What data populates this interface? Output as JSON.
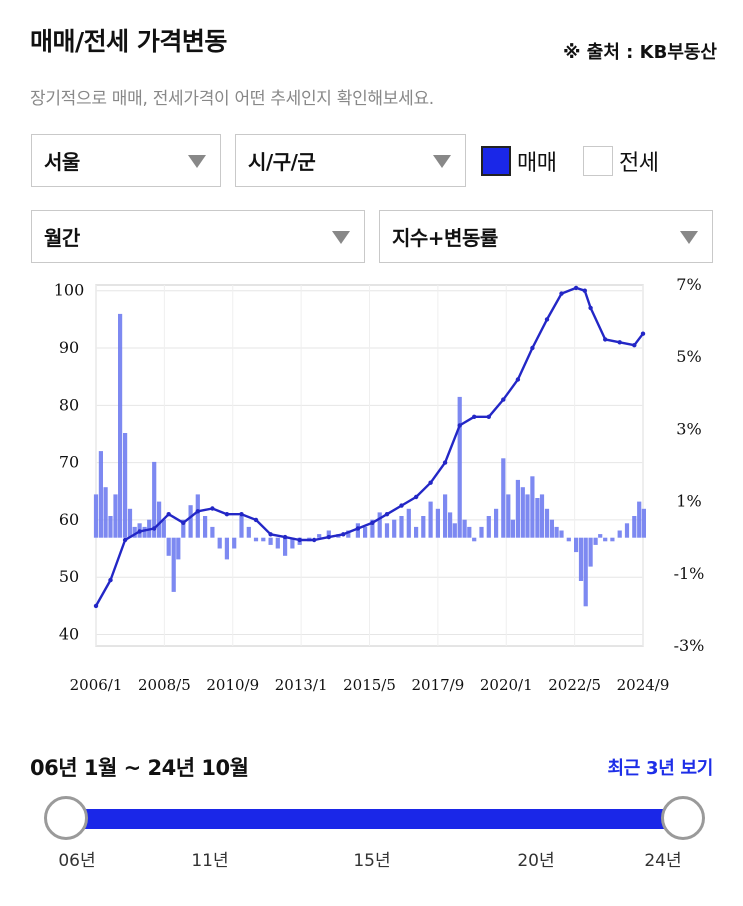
{
  "header": {
    "title": "매매/전세 가격변동",
    "source": "※ 출처 : KB부동산",
    "subtitle": "장기적으로 매매, 전세가격이 어떤 추세인지 확인해보세요."
  },
  "filters": {
    "region": "서울",
    "district": "시/구/군",
    "period": "월간",
    "mode": "지수+변동률",
    "sale_label": "매매",
    "sale_checked": true,
    "lease_label": "전세",
    "lease_checked": false
  },
  "colors": {
    "line": "#2327c6",
    "bar": "#6f7cf0",
    "accent": "#1a27e8",
    "grid": "#e6e6e6"
  },
  "chart_data": {
    "type": "line+bar",
    "x_tick_labels": [
      "2006/1",
      "2008/5",
      "2010/9",
      "2013/1",
      "2015/5",
      "2017/9",
      "2020/1",
      "2022/5",
      "2024/9"
    ],
    "left_axis": {
      "ticks": [
        "100",
        "90",
        "80",
        "70",
        "60",
        "50",
        "40"
      ],
      "ylim": [
        38,
        101
      ]
    },
    "right_axis": {
      "ticks": [
        "7%",
        "5%",
        "3%",
        "1%",
        "-1%",
        "-3%"
      ],
      "ylim": [
        -3,
        7
      ]
    },
    "grid": true,
    "series": [
      {
        "kind": "line",
        "axis": "left",
        "x": [
          2006.0,
          2006.5,
          2007.0,
          2007.5,
          2008.0,
          2008.5,
          2009.0,
          2009.5,
          2010.0,
          2010.5,
          2011.0,
          2011.5,
          2012.0,
          2012.5,
          2013.0,
          2013.5,
          2014.0,
          2014.5,
          2015.0,
          2015.5,
          2016.0,
          2016.5,
          2017.0,
          2017.5,
          2018.0,
          2018.5,
          2019.0,
          2019.5,
          2020.0,
          2020.5,
          2021.0,
          2021.5,
          2022.0,
          2022.5,
          2022.8,
          2023.0,
          2023.5,
          2024.0,
          2024.5,
          2024.8
        ],
        "values": [
          45,
          49.5,
          56.5,
          58,
          58.5,
          61,
          59.5,
          61.5,
          62,
          61,
          61,
          60,
          57.5,
          57,
          56.5,
          56.5,
          57,
          57.5,
          58.5,
          59.5,
          61,
          62.5,
          64,
          66.5,
          70,
          76.5,
          78,
          78,
          81,
          84.5,
          90,
          95,
          99.5,
          100.5,
          100,
          97,
          91.5,
          91,
          90.5,
          92.5
        ]
      },
      {
        "kind": "bar",
        "axis": "right",
        "x": [
          2006.0,
          2006.17,
          2006.33,
          2006.5,
          2006.67,
          2006.83,
          2007.0,
          2007.17,
          2007.33,
          2007.5,
          2007.67,
          2007.83,
          2008.0,
          2008.17,
          2008.33,
          2008.5,
          2008.67,
          2008.83,
          2009.0,
          2009.25,
          2009.5,
          2009.75,
          2010.0,
          2010.25,
          2010.5,
          2010.75,
          2011.0,
          2011.25,
          2011.5,
          2011.75,
          2012.0,
          2012.25,
          2012.5,
          2012.75,
          2013.0,
          2013.33,
          2013.67,
          2014.0,
          2014.33,
          2014.67,
          2015.0,
          2015.25,
          2015.5,
          2015.75,
          2016.0,
          2016.25,
          2016.5,
          2016.75,
          2017.0,
          2017.25,
          2017.5,
          2017.75,
          2018.0,
          2018.17,
          2018.33,
          2018.5,
          2018.67,
          2018.83,
          2019.0,
          2019.25,
          2019.5,
          2019.75,
          2020.0,
          2020.17,
          2020.33,
          2020.5,
          2020.67,
          2020.83,
          2021.0,
          2021.17,
          2021.33,
          2021.5,
          2021.67,
          2021.83,
          2022.0,
          2022.25,
          2022.5,
          2022.67,
          2022.83,
          2023.0,
          2023.17,
          2023.33,
          2023.5,
          2023.75,
          2024.0,
          2024.25,
          2024.5,
          2024.67,
          2024.83
        ],
        "values": [
          1.2,
          2.4,
          1.4,
          0.6,
          1.2,
          6.2,
          2.9,
          0.8,
          0.3,
          0.4,
          0.3,
          0.5,
          2.1,
          1.0,
          0.5,
          -0.5,
          -1.5,
          -0.6,
          0.5,
          0.9,
          1.2,
          0.6,
          0.3,
          -0.3,
          -0.6,
          -0.3,
          0.6,
          0.3,
          -0.1,
          -0.1,
          -0.2,
          -0.3,
          -0.5,
          -0.3,
          -0.2,
          -0.1,
          0.1,
          0.2,
          0.1,
          0.2,
          0.4,
          0.3,
          0.5,
          0.7,
          0.4,
          0.5,
          0.6,
          0.8,
          0.3,
          0.6,
          1.0,
          0.8,
          1.2,
          0.7,
          0.4,
          3.9,
          0.5,
          0.3,
          -0.1,
          0.3,
          0.6,
          0.8,
          2.2,
          1.2,
          0.5,
          1.6,
          1.4,
          1.2,
          1.7,
          1.1,
          1.2,
          0.8,
          0.5,
          0.3,
          0.2,
          -0.1,
          -0.4,
          -1.2,
          -1.9,
          -0.8,
          -0.2,
          0.1,
          -0.1,
          -0.1,
          0.2,
          0.4,
          0.6,
          1.0,
          0.8
        ]
      }
    ]
  },
  "range": {
    "label": "06년 1월 ~ 24년 10월",
    "recent_button": "최근 3년 보기",
    "ticks": [
      "06년",
      "11년",
      "15년",
      "20년",
      "24년"
    ]
  }
}
